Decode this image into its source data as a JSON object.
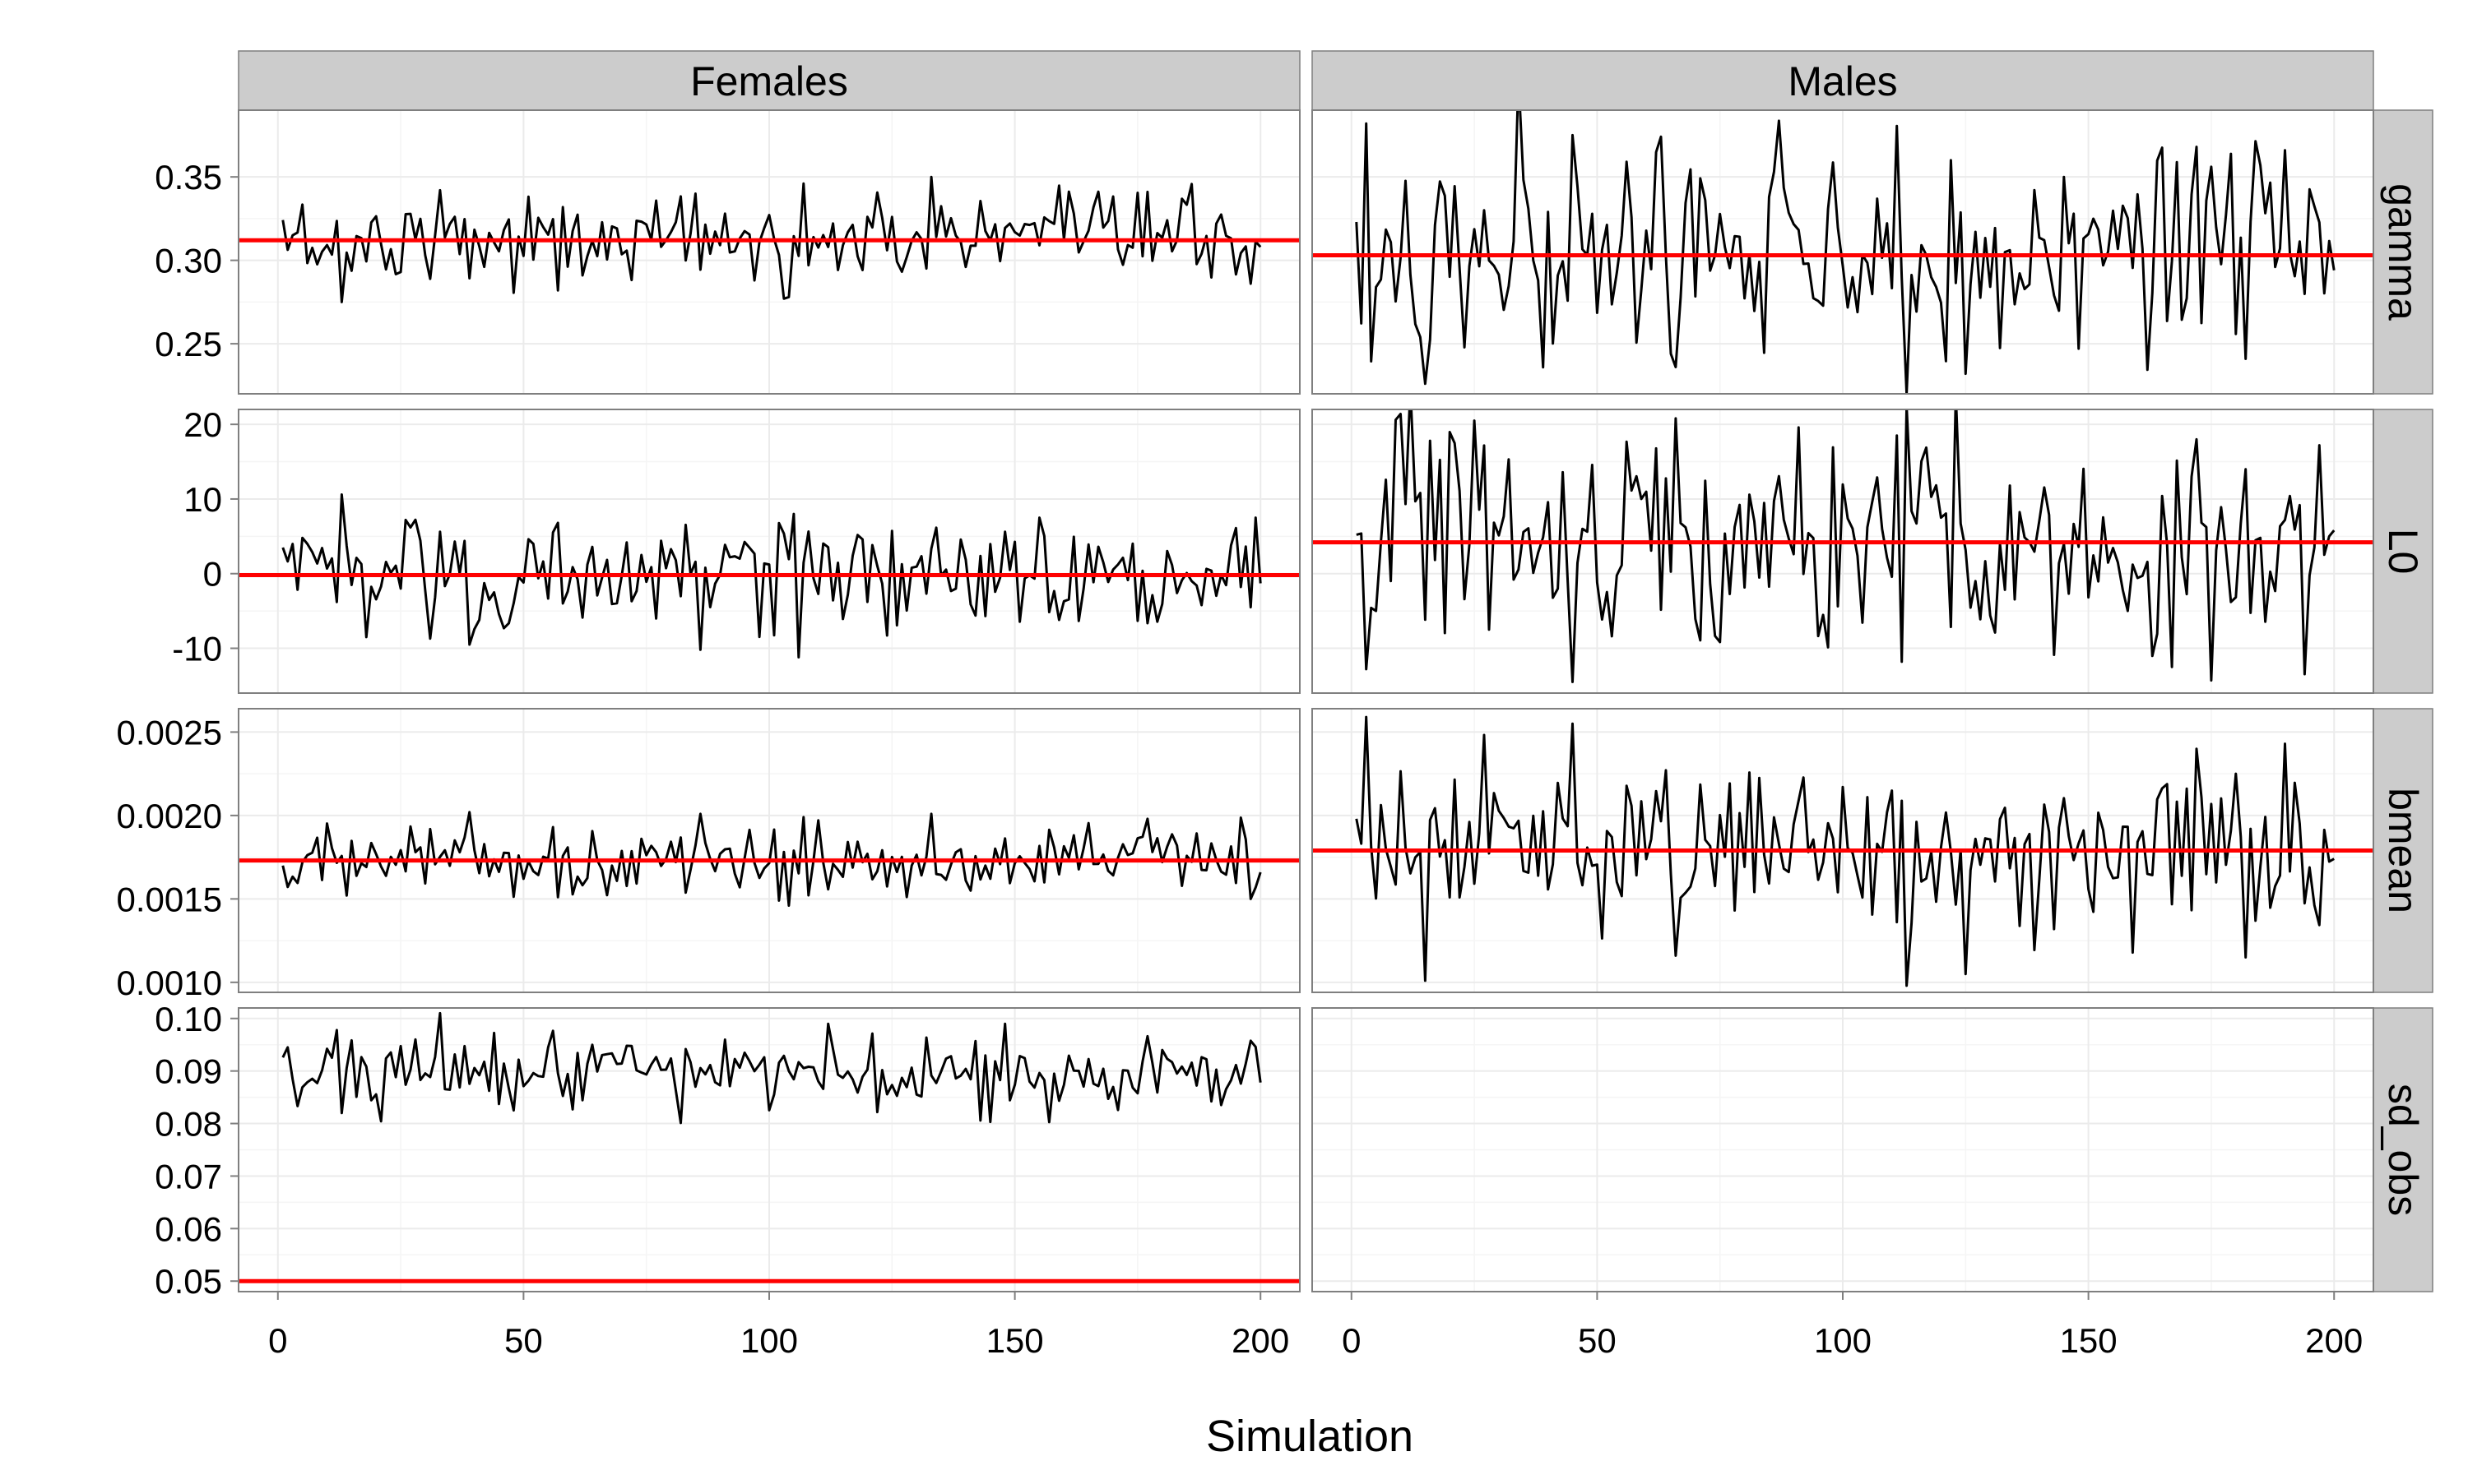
{
  "chart_data": {
    "type": "line",
    "title": "",
    "xlabel": "Simulation",
    "ylabel": "",
    "xlim": [
      -8,
      208
    ],
    "x_ticks": [
      0,
      50,
      100,
      150,
      200
    ],
    "columns": [
      "Females",
      "Males"
    ],
    "rows": [
      "gamma",
      "L0",
      "bmean",
      "sd_obs"
    ],
    "colors": {
      "series": "#000000",
      "reference": "#ff0000",
      "strip_fill": "#cccccc",
      "grid": "#ebebeb",
      "border": "#7f7f7f"
    },
    "panels_meta": [
      {
        "row": "gamma",
        "ylim": [
          0.22,
          0.39
        ],
        "y_ticks": [
          0.25,
          0.3,
          0.35
        ],
        "y_tick_labels": [
          "0.25",
          "0.30",
          "0.35"
        ],
        "female_reference": 0.312,
        "male_reference": 0.303,
        "female_sd": 0.014,
        "male_sd": 0.035
      },
      {
        "row": "L0",
        "ylim": [
          -16,
          22
        ],
        "y_ticks": [
          -10,
          0,
          10,
          20
        ],
        "y_tick_labels": [
          "-10",
          "0",
          "10",
          "20"
        ],
        "female_reference": -0.2,
        "male_reference": 4.2,
        "female_sd": 4.0,
        "male_sd": 8.5
      },
      {
        "row": "bmean",
        "ylim": [
          0.00094,
          0.00264
        ],
        "y_ticks": [
          0.001,
          0.0015,
          0.002,
          0.0025
        ],
        "y_tick_labels": [
          "0.0010",
          "0.0015",
          "0.0020",
          "0.0025"
        ],
        "female_reference": 0.00173,
        "male_reference": 0.00179,
        "female_sd": 0.00011,
        "male_sd": 0.00028
      },
      {
        "row": "sd_obs",
        "ylim": [
          0.048,
          0.102
        ],
        "y_ticks": [
          0.05,
          0.06,
          0.07,
          0.08,
          0.09,
          0.1
        ],
        "y_tick_labels": [
          "0.05",
          "0.06",
          "0.07",
          "0.08",
          "0.09",
          "0.10"
        ],
        "female_reference": 0.05,
        "male_reference": null,
        "female_sd": 0.004,
        "male_sd": null
      }
    ],
    "series": [
      {
        "name": "gamma — Females",
        "x_start": 1,
        "x_step": 1,
        "peaks": [
          {
            "x": 3,
            "y": 0.315
          },
          {
            "x": 33,
            "y": 0.342
          },
          {
            "x": 85,
            "y": 0.34
          },
          {
            "x": 104,
            "y": 0.278
          },
          {
            "x": 107,
            "y": 0.346
          },
          {
            "x": 133,
            "y": 0.35
          },
          {
            "x": 177,
            "y": 0.341
          }
        ],
        "troughs": [
          {
            "x": 13,
            "y": 0.275
          },
          {
            "x": 57,
            "y": 0.282
          },
          {
            "x": 103,
            "y": 0.277
          },
          {
            "x": 198,
            "y": 0.286
          },
          {
            "x": 200,
            "y": 0.308
          }
        ]
      },
      {
        "name": "gamma — Males",
        "x_start": 1,
        "x_step": 1,
        "peaks": [
          {
            "x": 1,
            "y": 0.323
          },
          {
            "x": 3,
            "y": 0.382
          },
          {
            "x": 45,
            "y": 0.375
          },
          {
            "x": 122,
            "y": 0.36
          },
          {
            "x": 145,
            "y": 0.35
          },
          {
            "x": 172,
            "y": 0.368
          },
          {
            "x": 190,
            "y": 0.366
          }
        ],
        "troughs": [
          {
            "x": 15,
            "y": 0.226
          },
          {
            "x": 66,
            "y": 0.236
          },
          {
            "x": 113,
            "y": 0.22
          },
          {
            "x": 125,
            "y": 0.232
          },
          {
            "x": 182,
            "y": 0.241
          },
          {
            "x": 200,
            "y": 0.294
          }
        ]
      },
      {
        "name": "L0 — Females",
        "x_start": 1,
        "x_step": 1,
        "peaks": [
          {
            "x": 1,
            "y": 3.5
          },
          {
            "x": 13,
            "y": 10.6
          },
          {
            "x": 26,
            "y": 7.2
          },
          {
            "x": 57,
            "y": 6.8
          },
          {
            "x": 105,
            "y": 8.0
          },
          {
            "x": 155,
            "y": 7.5
          },
          {
            "x": 199,
            "y": 7.5
          }
        ],
        "troughs": [
          {
            "x": 31,
            "y": -8.7
          },
          {
            "x": 39,
            "y": -9.5
          },
          {
            "x": 86,
            "y": -10.2
          },
          {
            "x": 106,
            "y": -11.2
          },
          {
            "x": 159,
            "y": -6.2
          },
          {
            "x": 200,
            "y": -1.3
          }
        ]
      },
      {
        "name": "L0 — Males",
        "x_start": 1,
        "x_step": 1,
        "peaks": [
          {
            "x": 16,
            "y": 17.8
          },
          {
            "x": 25,
            "y": 20.5
          },
          {
            "x": 66,
            "y": 20.8
          },
          {
            "x": 111,
            "y": 18.5
          },
          {
            "x": 172,
            "y": 18.0
          },
          {
            "x": 197,
            "y": 17.2
          }
        ],
        "troughs": [
          {
            "x": 3,
            "y": -12.8
          },
          {
            "x": 45,
            "y": -14.5
          },
          {
            "x": 112,
            "y": -11.8
          },
          {
            "x": 167,
            "y": -12.5
          },
          {
            "x": 175,
            "y": -14.3
          },
          {
            "x": 200,
            "y": 5.8
          }
        ]
      },
      {
        "name": "bmean — Females",
        "x_start": 1,
        "x_step": 1,
        "peaks": [
          {
            "x": 1,
            "y": 0.0017
          },
          {
            "x": 39,
            "y": 0.00202
          },
          {
            "x": 86,
            "y": 0.00201
          },
          {
            "x": 107,
            "y": 0.00199
          },
          {
            "x": 133,
            "y": 0.00201
          },
          {
            "x": 177,
            "y": 0.00198
          }
        ],
        "troughs": [
          {
            "x": 14,
            "y": 0.00152
          },
          {
            "x": 57,
            "y": 0.00151
          },
          {
            "x": 102,
            "y": 0.00149
          },
          {
            "x": 104,
            "y": 0.00146
          },
          {
            "x": 198,
            "y": 0.0015
          },
          {
            "x": 200,
            "y": 0.00166
          }
        ]
      },
      {
        "name": "bmean — Males",
        "x_start": 1,
        "x_step": 1,
        "peaks": [
          {
            "x": 1,
            "y": 0.00198
          },
          {
            "x": 3,
            "y": 0.00259
          },
          {
            "x": 45,
            "y": 0.00255
          },
          {
            "x": 172,
            "y": 0.0024
          },
          {
            "x": 190,
            "y": 0.00243
          }
        ],
        "troughs": [
          {
            "x": 15,
            "y": 0.00101
          },
          {
            "x": 66,
            "y": 0.00116
          },
          {
            "x": 113,
            "y": 0.00098
          },
          {
            "x": 125,
            "y": 0.00105
          },
          {
            "x": 182,
            "y": 0.00115
          },
          {
            "x": 200,
            "y": 0.00174
          }
        ]
      },
      {
        "name": "sd_obs — Females",
        "x_start": 1,
        "x_step": 1,
        "peaks": [
          {
            "x": 2,
            "y": 0.0945
          },
          {
            "x": 33,
            "y": 0.101
          },
          {
            "x": 28,
            "y": 0.096
          },
          {
            "x": 112,
            "y": 0.099
          },
          {
            "x": 148,
            "y": 0.099
          }
        ],
        "troughs": [
          {
            "x": 13,
            "y": 0.082
          },
          {
            "x": 48,
            "y": 0.0825
          },
          {
            "x": 145,
            "y": 0.0803
          },
          {
            "x": 200,
            "y": 0.0878
          }
        ]
      }
    ]
  }
}
